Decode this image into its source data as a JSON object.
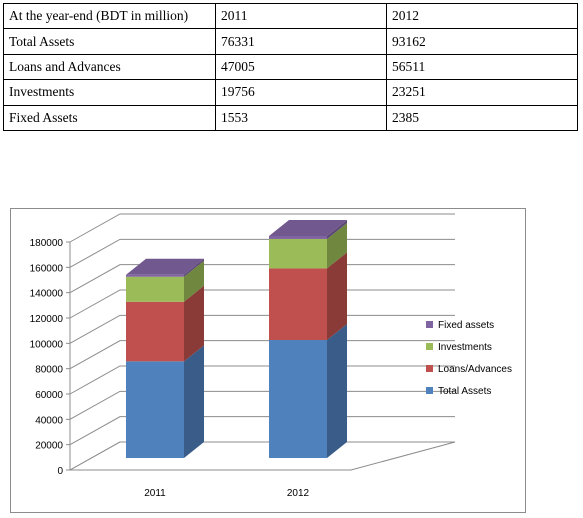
{
  "table": {
    "header": [
      "At the year-end (BDT in million)",
      "2011",
      "2012"
    ],
    "rows": [
      [
        "Total Assets",
        "76331",
        "93162"
      ],
      [
        "Loans and Advances",
        "47005",
        "56511"
      ],
      [
        "Investments",
        "19756",
        "23251"
      ],
      [
        "Fixed Assets",
        "1553",
        "2385"
      ]
    ]
  },
  "chart_data": {
    "type": "bar",
    "stacked": true,
    "three_d": true,
    "categories": [
      "2011",
      "2012"
    ],
    "series": [
      {
        "name": "Total Assets",
        "values": [
          76331,
          93162
        ],
        "color": "#4f81bd"
      },
      {
        "name": "Loans/Advances",
        "values": [
          47005,
          56511
        ],
        "color": "#c0504d"
      },
      {
        "name": "Investments",
        "values": [
          19756,
          23251
        ],
        "color": "#9bbb59"
      },
      {
        "name": "Fixed assets",
        "values": [
          1553,
          2385
        ],
        "color": "#8064a2"
      }
    ],
    "ylim": [
      0,
      180000
    ],
    "yticks": [
      "0",
      "20000",
      "40000",
      "60000",
      "80000",
      "100000",
      "120000",
      "140000",
      "160000",
      "180000"
    ],
    "grid": true,
    "legend_position": "right"
  }
}
